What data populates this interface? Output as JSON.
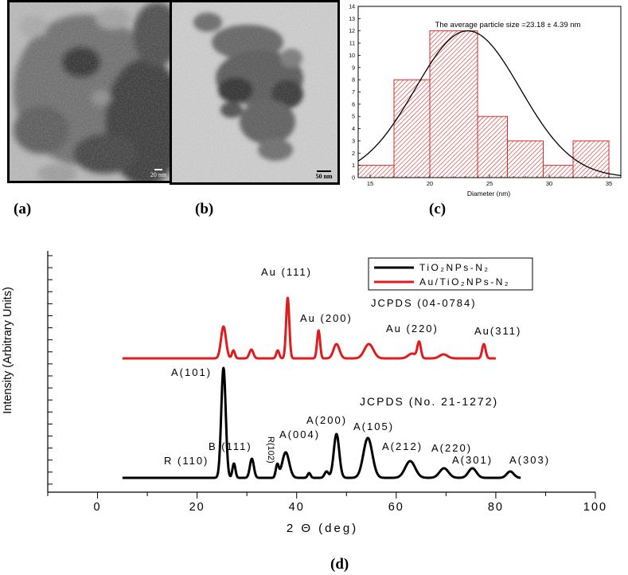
{
  "panels": {
    "a": {
      "label": "(a)",
      "scale": "20 nm"
    },
    "b": {
      "label": "(b)",
      "scale": "50 nm"
    },
    "c": {
      "label": "(c)"
    },
    "d": {
      "label": "(d)"
    }
  },
  "colors": {
    "red": "#e01b1b",
    "black": "#000000",
    "hatch": "#d22b2b"
  },
  "chart_data": [
    {
      "id": "histogram",
      "type": "bar",
      "title": "The average particle size =23.18 ± 4.39 nm",
      "xlabel": "Diameter (nm)",
      "ylabel": "",
      "xlim": [
        14,
        36
      ],
      "ylim": [
        0,
        14
      ],
      "xticks": [
        15,
        20,
        25,
        30,
        35
      ],
      "yticks": [
        0,
        1,
        2,
        3,
        4,
        5,
        6,
        7,
        8,
        9,
        10,
        11,
        12,
        13,
        14
      ],
      "bins": [
        {
          "from": 14,
          "to": 17,
          "count": 1
        },
        {
          "from": 17,
          "to": 20,
          "count": 8
        },
        {
          "from": 20,
          "to": 24,
          "count": 12
        },
        {
          "from": 24,
          "to": 26.5,
          "count": 5
        },
        {
          "from": 26.5,
          "to": 29.5,
          "count": 3
        },
        {
          "from": 29.5,
          "to": 32,
          "count": 1
        },
        {
          "from": 32,
          "to": 35,
          "count": 3
        }
      ],
      "fit": {
        "type": "gaussian",
        "mean": 23.18,
        "sd": 4.39,
        "peak": 12
      }
    },
    {
      "id": "xrd",
      "type": "line",
      "xlabel": "2 Θ (deg)",
      "ylabel": "Intensity (Arbitrary Units)",
      "xlim": [
        -10,
        100
      ],
      "xticks": [
        0,
        20,
        40,
        60,
        80,
        100
      ],
      "legend": [
        {
          "text": "TiO₂NPs-N₂",
          "color": "#000000"
        },
        {
          "text": "Au/TiO₂NPs-N₂",
          "color": "#e01b1b"
        }
      ],
      "series": [
        {
          "name": "TiO2 NPs-N2",
          "color": "#000000",
          "baseline": 0,
          "x_range": [
            5,
            85
          ],
          "peaks": [
            {
              "x": 25.3,
              "h": 138,
              "w": 0.45
            },
            {
              "x": 27.4,
              "h": 18,
              "w": 0.3
            },
            {
              "x": 31.0,
              "h": 24,
              "w": 0.4
            },
            {
              "x": 36.1,
              "h": 16,
              "w": 0.3
            },
            {
              "x": 37.8,
              "h": 32,
              "w": 0.7
            },
            {
              "x": 42.5,
              "h": 6,
              "w": 0.3
            },
            {
              "x": 46.0,
              "h": 8,
              "w": 0.4
            },
            {
              "x": 48.0,
              "h": 55,
              "w": 0.55
            },
            {
              "x": 54.3,
              "h": 50,
              "w": 0.9
            },
            {
              "x": 62.8,
              "h": 21,
              "w": 1.0
            },
            {
              "x": 69.6,
              "h": 12,
              "w": 0.9
            },
            {
              "x": 75.3,
              "h": 12,
              "w": 0.8
            },
            {
              "x": 82.9,
              "h": 8,
              "w": 0.7
            }
          ]
        },
        {
          "name": "Au/TiO2 NPs-N2",
          "color": "#e01b1b",
          "baseline": 150,
          "x_range": [
            5,
            80
          ],
          "peaks": [
            {
              "x": 25.3,
              "h": 40,
              "w": 0.5
            },
            {
              "x": 27.3,
              "h": 10,
              "w": 0.3
            },
            {
              "x": 30.9,
              "h": 11,
              "w": 0.4
            },
            {
              "x": 36.2,
              "h": 10,
              "w": 0.3
            },
            {
              "x": 38.2,
              "h": 76,
              "w": 0.32
            },
            {
              "x": 44.4,
              "h": 35,
              "w": 0.3
            },
            {
              "x": 48.0,
              "h": 18,
              "w": 0.6
            },
            {
              "x": 54.5,
              "h": 18,
              "w": 0.9
            },
            {
              "x": 63.2,
              "h": 6,
              "w": 0.8
            },
            {
              "x": 64.6,
              "h": 20,
              "w": 0.35
            },
            {
              "x": 69.5,
              "h": 5,
              "w": 0.8
            },
            {
              "x": 77.6,
              "h": 18,
              "w": 0.35
            }
          ]
        }
      ],
      "annotations": {
        "au_111": "Au (111)",
        "au_200": "Au (200)",
        "au_220": "Au (220)",
        "au_311": "Au(311)",
        "jcpds_au": "JCPDS (04-0784)",
        "a_101": "A(101)",
        "jcpds_tio2": "JCPDS (No. 21-1272)",
        "a_200": "A(200)",
        "a_105": "A(105)",
        "a_004": "A(004)",
        "r_102": "R(102)",
        "b_111": "B (111)",
        "r_110": "R (110)",
        "a_212": "A(212)",
        "a_220": "A(220)",
        "a_301": "A(301)",
        "a_303": "A(303)"
      }
    }
  ]
}
